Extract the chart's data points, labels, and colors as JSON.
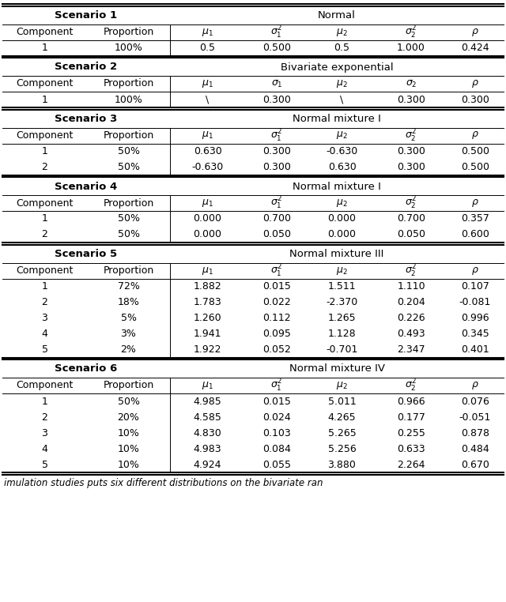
{
  "scenarios": [
    {
      "name": "Scenario 1",
      "distribution": "Normal",
      "is_s2": false,
      "rows": [
        [
          "1",
          "100%",
          "0.5",
          "0.500",
          "0.5",
          "1.000",
          "0.424"
        ]
      ]
    },
    {
      "name": "Scenario 2",
      "distribution": "Bivariate exponential",
      "is_s2": true,
      "rows": [
        [
          "1",
          "100%",
          "\\",
          "0.300",
          "\\",
          "0.300",
          "0.300"
        ]
      ]
    },
    {
      "name": "Scenario 3",
      "distribution": "Normal mixture I",
      "is_s2": false,
      "rows": [
        [
          "1",
          "50%",
          "0.630",
          "0.300",
          "-0.630",
          "0.300",
          "0.500"
        ],
        [
          "2",
          "50%",
          "-0.630",
          "0.300",
          "0.630",
          "0.300",
          "0.500"
        ]
      ]
    },
    {
      "name": "Scenario 4",
      "distribution": "Normal mixture I",
      "is_s2": false,
      "rows": [
        [
          "1",
          "50%",
          "0.000",
          "0.700",
          "0.000",
          "0.700",
          "0.357"
        ],
        [
          "2",
          "50%",
          "0.000",
          "0.050",
          "0.000",
          "0.050",
          "0.600"
        ]
      ]
    },
    {
      "name": "Scenario 5",
      "distribution": "Normal mixture III",
      "is_s2": false,
      "rows": [
        [
          "1",
          "72%",
          "1.882",
          "0.015",
          "1.511",
          "1.110",
          "0.107"
        ],
        [
          "2",
          "18%",
          "1.783",
          "0.022",
          "-2.370",
          "0.204",
          "-0.081"
        ],
        [
          "3",
          "5%",
          "1.260",
          "0.112",
          "1.265",
          "0.226",
          "0.996"
        ],
        [
          "4",
          "3%",
          "1.941",
          "0.095",
          "1.128",
          "0.493",
          "0.345"
        ],
        [
          "5",
          "2%",
          "1.922",
          "0.052",
          "-0.701",
          "2.347",
          "0.401"
        ]
      ]
    },
    {
      "name": "Scenario 6",
      "distribution": "Normal mixture IV",
      "is_s2": false,
      "rows": [
        [
          "1",
          "50%",
          "4.985",
          "0.015",
          "5.011",
          "0.966",
          "0.076"
        ],
        [
          "2",
          "20%",
          "4.585",
          "0.024",
          "4.265",
          "0.177",
          "-0.051"
        ],
        [
          "3",
          "10%",
          "4.830",
          "0.103",
          "5.265",
          "0.255",
          "0.878"
        ],
        [
          "4",
          "10%",
          "4.983",
          "0.084",
          "5.256",
          "0.633",
          "0.484"
        ],
        [
          "5",
          "10%",
          "4.924",
          "0.055",
          "3.880",
          "2.264",
          "0.670"
        ]
      ]
    }
  ],
  "col_labels_normal": [
    "Component",
    "Proportion",
    "$\\mu_1$",
    "$\\sigma_1^2$",
    "$\\mu_2$",
    "$\\sigma_2^2$",
    "$\\rho$"
  ],
  "col_labels_s2": [
    "Component",
    "Proportion",
    "$\\mu_1$",
    "$\\sigma_1$",
    "$\\mu_2$",
    "$\\sigma_2$",
    "$\\rho$"
  ],
  "caption": "imulation studies puts six different distributions on the bivariate ran",
  "background_color": "#ffffff"
}
